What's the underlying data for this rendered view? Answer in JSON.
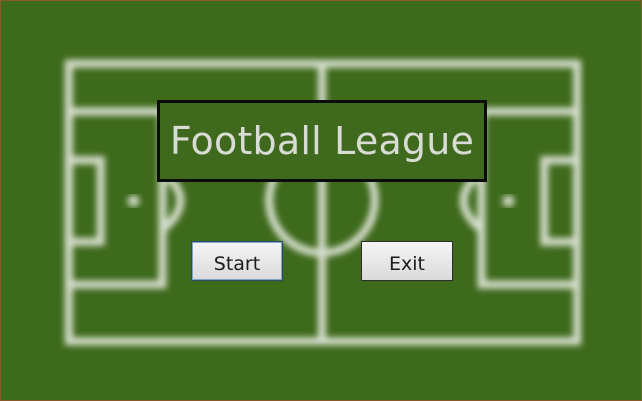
{
  "window": {
    "title": "Football League"
  },
  "buttons": {
    "start_label": "Start",
    "exit_label": "Exit"
  },
  "colors": {
    "grass": "#3e6a1c",
    "pitch_lines": "#e6eadf",
    "title_text": "#d9dcd4",
    "window_border": "#8a5a2b"
  }
}
